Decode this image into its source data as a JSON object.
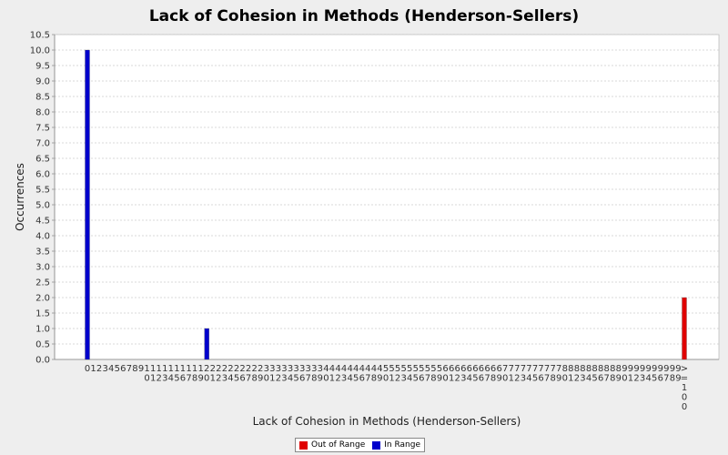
{
  "chart_data": {
    "type": "bar",
    "title": "Lack of Cohesion in Methods (Henderson-Sellers)",
    "xlabel": "Lack of Cohesion in Methods (Henderson-Sellers)",
    "ylabel": "Occurrences",
    "ylim": [
      0,
      10.5
    ],
    "y_ticks": [
      "0.0",
      "0.5",
      "1.0",
      "1.5",
      "2.0",
      "2.5",
      "3.0",
      "3.5",
      "4.0",
      "4.5",
      "5.0",
      "5.5",
      "6.0",
      "6.5",
      "7.0",
      "7.5",
      "8.0",
      "8.5",
      "9.0",
      "9.5",
      "10.0",
      "10.5"
    ],
    "grid": true,
    "legend_position": "bottom",
    "colors": {
      "out_of_range": "#e00000",
      "in_range": "#0000cc"
    },
    "categories": [
      "0",
      "1",
      "2",
      "3",
      "4",
      "5",
      "6",
      "7",
      "8",
      "9",
      "10",
      "11",
      "12",
      "13",
      "14",
      "15",
      "16",
      "17",
      "18",
      "19",
      "20",
      "21",
      "22",
      "23",
      "24",
      "25",
      "26",
      "27",
      "28",
      "29",
      "30",
      "31",
      "32",
      "33",
      "34",
      "35",
      "36",
      "37",
      "38",
      "39",
      "40",
      "41",
      "42",
      "43",
      "44",
      "45",
      "46",
      "47",
      "48",
      "49",
      "50",
      "51",
      "52",
      "53",
      "54",
      "55",
      "56",
      "57",
      "58",
      "59",
      "60",
      "61",
      "62",
      "63",
      "64",
      "65",
      "66",
      "67",
      "68",
      "69",
      "70",
      "71",
      "72",
      "73",
      "74",
      "75",
      "76",
      "77",
      "78",
      "79",
      "80",
      "81",
      "82",
      "83",
      "84",
      "85",
      "86",
      "87",
      "88",
      "89",
      "90",
      "91",
      "92",
      "93",
      "94",
      "95",
      "96",
      "97",
      "98",
      "99",
      ">=100"
    ],
    "series": [
      {
        "name": "Out of Range",
        "color": "#e00000",
        "values": [
          0,
          0,
          0,
          0,
          0,
          0,
          0,
          0,
          0,
          0,
          0,
          0,
          0,
          0,
          0,
          0,
          0,
          0,
          0,
          0,
          0,
          0,
          0,
          0,
          0,
          0,
          0,
          0,
          0,
          0,
          0,
          0,
          0,
          0,
          0,
          0,
          0,
          0,
          0,
          0,
          0,
          0,
          0,
          0,
          0,
          0,
          0,
          0,
          0,
          0,
          0,
          0,
          0,
          0,
          0,
          0,
          0,
          0,
          0,
          0,
          0,
          0,
          0,
          0,
          0,
          0,
          0,
          0,
          0,
          0,
          0,
          0,
          0,
          0,
          0,
          0,
          0,
          0,
          0,
          0,
          0,
          0,
          0,
          0,
          0,
          0,
          0,
          0,
          0,
          0,
          0,
          0,
          0,
          0,
          0,
          0,
          0,
          0,
          0,
          0,
          2
        ]
      },
      {
        "name": "In Range",
        "color": "#0000cc",
        "values": [
          10,
          0,
          0,
          0,
          0,
          0,
          0,
          0,
          0,
          0,
          0,
          0,
          0,
          0,
          0,
          0,
          0,
          0,
          0,
          0,
          1,
          0,
          0,
          0,
          0,
          0,
          0,
          0,
          0,
          0,
          0,
          0,
          0,
          0,
          0,
          0,
          0,
          0,
          0,
          0,
          0,
          0,
          0,
          0,
          0,
          0,
          0,
          0,
          0,
          0,
          0,
          0,
          0,
          0,
          0,
          0,
          0,
          0,
          0,
          0,
          0,
          0,
          0,
          0,
          0,
          0,
          0,
          0,
          0,
          0,
          0,
          0,
          0,
          0,
          0,
          0,
          0,
          0,
          0,
          0,
          0,
          0,
          0,
          0,
          0,
          0,
          0,
          0,
          0,
          0,
          0,
          0,
          0,
          0,
          0,
          0,
          0,
          0,
          0,
          0,
          0
        ]
      }
    ]
  }
}
